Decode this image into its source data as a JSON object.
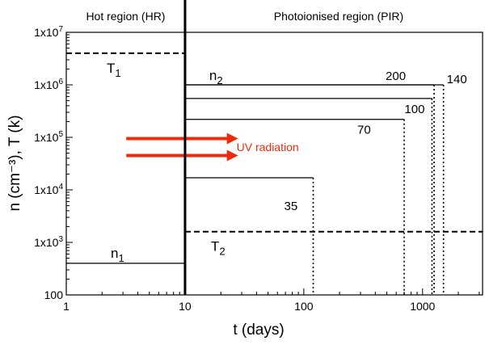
{
  "chart_data": {
    "type": "line",
    "xscale": "log",
    "yscale": "log",
    "xlim": [
      1,
      3200
    ],
    "ylim": [
      100,
      10000000
    ],
    "xlabel": "t (days)",
    "ylabel": "n (cm⁻³), T (k)",
    "x_ticks": [
      {
        "value": 1,
        "label": "1"
      },
      {
        "value": 10,
        "label": "10"
      },
      {
        "value": 100,
        "label": "100"
      },
      {
        "value": 1000,
        "label": "1000"
      }
    ],
    "y_ticks": [
      {
        "value": 100,
        "mant": "100",
        "exp": ""
      },
      {
        "value": 1000,
        "mant": "1x10",
        "exp": "3"
      },
      {
        "value": 10000,
        "mant": "1x10",
        "exp": "4"
      },
      {
        "value": 100000,
        "mant": "1x10",
        "exp": "5"
      },
      {
        "value": 1000000,
        "mant": "1x10",
        "exp": "6"
      },
      {
        "value": 10000000,
        "mant": "1x10",
        "exp": "7"
      }
    ],
    "regions": [
      {
        "name": "Hot region (HR)",
        "x_from": 1,
        "x_to": 10
      },
      {
        "name": "Photoionised region (PIR)",
        "x_from": 10,
        "x_to": 3200
      }
    ],
    "boundary_x": 10,
    "temperature_series": [
      {
        "name": "T",
        "sub": "1",
        "x": [
          1,
          10
        ],
        "y": [
          4000000,
          4000000
        ]
      },
      {
        "name": "T",
        "sub": "2",
        "x": [
          10,
          3200
        ],
        "y": [
          1600,
          1600
        ]
      }
    ],
    "density_series": [
      {
        "name": "n",
        "sub": "1",
        "x": [
          1,
          10
        ],
        "y": [
          400,
          400
        ]
      }
    ],
    "pir_density_label": {
      "name": "n",
      "sub": "2"
    },
    "pir_density_curves": [
      {
        "label": "35",
        "level": 17000,
        "end_t": 120
      },
      {
        "label": "70",
        "level": 220000,
        "end_t": 700
      },
      {
        "label": "100",
        "level": 550000,
        "end_t": 1200
      },
      {
        "label": "200",
        "level": 1000000,
        "end_t": 1250
      },
      {
        "label": "140",
        "level": 1000000,
        "end_t": 1500
      }
    ],
    "arrows": {
      "label": "UV radiation",
      "y": [
        95000,
        45000
      ],
      "x_from": 3.2,
      "x_to": 28,
      "color": "#ee2a0b"
    }
  }
}
